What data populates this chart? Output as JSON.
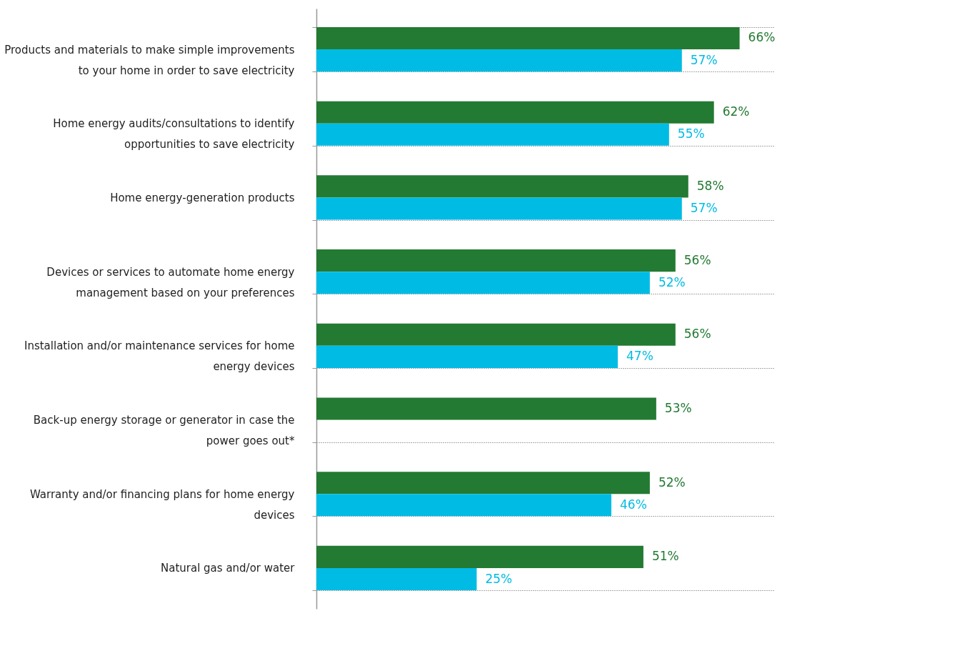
{
  "chart_data": {
    "type": "bar",
    "orientation": "horizontal",
    "categories": [
      "Products and materials to make simple improvements to your home in order to save electricity",
      "Home energy audits/consultations to identify opportunities to save electricity",
      "Home energy-generation products",
      "Devices or services to automate home energy management based on your preferences",
      "Installation and/or maintenance services for home energy devices",
      "Back-up energy storage or generator in case the power goes out*",
      "Warranty and/or financing plans for home energy devices",
      "Natural gas and/or water"
    ],
    "series": [
      {
        "color": "#237a32",
        "values": [
          66,
          62,
          58,
          56,
          56,
          53,
          52,
          51
        ],
        "value_labels": [
          "66%",
          "62%",
          "58%",
          "56%",
          "56%",
          "53%",
          "52%",
          "51%"
        ]
      },
      {
        "color": "#00bce4",
        "values": [
          57,
          55,
          57,
          52,
          47,
          null,
          46,
          25
        ],
        "value_labels": [
          "57%",
          "55%",
          "57%",
          "52%",
          "47%",
          null,
          "46%",
          "25%"
        ]
      }
    ],
    "grid": true
  }
}
